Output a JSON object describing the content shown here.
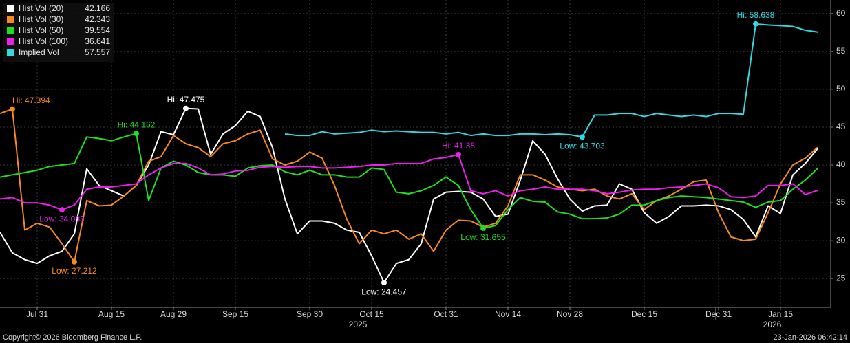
{
  "chart_data": {
    "type": "line",
    "categories": [
      null,
      null,
      null,
      "Jul 31",
      null,
      null,
      null,
      null,
      null,
      "Aug 15",
      null,
      null,
      null,
      null,
      "Aug 29",
      null,
      null,
      null,
      null,
      "Sep 15",
      null,
      null,
      null,
      null,
      null,
      "Sep 30",
      null,
      null,
      null,
      null,
      "Oct 15",
      null,
      null,
      null,
      null,
      null,
      "Oct 31",
      null,
      null,
      null,
      null,
      "Nov 14",
      null,
      null,
      null,
      null,
      "Nov 28",
      null,
      null,
      null,
      null,
      null,
      "Dec 15",
      null,
      null,
      null,
      null,
      null,
      "Dec 31",
      null,
      null,
      null,
      null,
      "Jan 15",
      null,
      null,
      null
    ],
    "years": [
      "2025",
      "2026"
    ],
    "series": [
      {
        "name": "Hist Vol (20)",
        "color": "#ffffff",
        "hi_label": "Hi: 47.475",
        "low_label": "Low: 24.457",
        "values": [
          31.1,
          28.4,
          27.5,
          27.0,
          28.0,
          28.6,
          30.9,
          39.5,
          37.3,
          36.6,
          35.9,
          37.3,
          40.0,
          44.4,
          44.0,
          47.475,
          47.4,
          41.4,
          44.1,
          45.2,
          47.1,
          46.4,
          42.3,
          35.5,
          30.9,
          32.6,
          32.6,
          32.3,
          31.4,
          31.1,
          28.0,
          24.457,
          27.0,
          27.5,
          29.6,
          35.5,
          36.4,
          36.5,
          36.4,
          35.5,
          33.2,
          33.5,
          38.0,
          43.2,
          41.4,
          38.2,
          35.5,
          33.9,
          34.6,
          34.7,
          37.5,
          36.8,
          33.7,
          32.3,
          33.2,
          34.6,
          34.6,
          34.7,
          34.6,
          34.1,
          32.8,
          30.5,
          34.6,
          33.6,
          38.7,
          40.2,
          42.166
        ]
      },
      {
        "name": "Hist Vol (30)",
        "color": "#f7891f",
        "hi_label": "Hi: 47.394",
        "low_label": "Low: 27.212",
        "values": [
          46.8,
          47.394,
          31.4,
          32.3,
          31.8,
          29.6,
          27.212,
          35.3,
          34.6,
          34.7,
          35.9,
          37.3,
          40.5,
          41.1,
          43.9,
          42.8,
          42.3,
          41.1,
          42.8,
          43.2,
          44.1,
          44.6,
          40.8,
          40.0,
          40.5,
          41.7,
          40.9,
          37.3,
          32.8,
          29.6,
          31.4,
          30.9,
          31.4,
          30.2,
          30.9,
          28.6,
          31.4,
          32.7,
          32.6,
          31.8,
          32.3,
          34.6,
          38.7,
          38.7,
          38.0,
          37.1,
          36.8,
          36.6,
          36.8,
          35.9,
          35.5,
          36.2,
          34.1,
          35.3,
          35.9,
          36.8,
          37.8,
          38.0,
          33.7,
          30.5,
          30.0,
          30.2,
          33.7,
          37.5,
          40.0,
          40.9,
          42.343
        ]
      },
      {
        "name": "Hist Vol (50)",
        "color": "#1fe01f",
        "hi_label": "Hi: 44.162",
        "low_label": "Low: 31.655",
        "values": [
          38.4,
          38.7,
          39.0,
          39.3,
          39.8,
          40.0,
          40.2,
          43.7,
          43.5,
          43.2,
          43.7,
          44.162,
          35.3,
          39.6,
          40.5,
          40.0,
          39.0,
          38.7,
          38.7,
          38.5,
          39.6,
          39.9,
          40.0,
          39.1,
          38.7,
          39.3,
          38.7,
          38.7,
          38.4,
          38.4,
          39.6,
          39.4,
          36.4,
          36.2,
          36.6,
          37.3,
          38.4,
          37.3,
          34.1,
          31.655,
          32.0,
          34.1,
          35.7,
          35.2,
          35.1,
          33.8,
          33.5,
          32.9,
          32.9,
          33.0,
          33.5,
          34.7,
          34.7,
          35.3,
          35.7,
          35.9,
          35.8,
          35.7,
          35.5,
          35.3,
          35.1,
          34.4,
          35.1,
          35.3,
          36.8,
          38.0,
          39.554
        ]
      },
      {
        "name": "Hist Vol (100)",
        "color": "#ec1fec",
        "hi_label": "Hi: 41.38",
        "low_label": "Low: 34.083",
        "values": [
          35.5,
          35.7,
          35.0,
          35.0,
          34.7,
          34.083,
          34.7,
          36.8,
          37.1,
          37.1,
          37.3,
          37.5,
          38.7,
          39.6,
          40.2,
          40.2,
          39.6,
          38.7,
          38.8,
          39.2,
          39.3,
          39.7,
          39.8,
          39.7,
          39.8,
          39.8,
          39.6,
          39.6,
          39.7,
          39.8,
          40.0,
          40.0,
          40.2,
          40.2,
          40.2,
          40.8,
          41.0,
          41.38,
          36.6,
          36.2,
          36.6,
          35.9,
          36.6,
          36.8,
          37.1,
          36.8,
          36.8,
          36.8,
          36.6,
          36.2,
          36.4,
          36.7,
          36.8,
          36.8,
          37.0,
          37.1,
          37.3,
          37.5,
          37.0,
          35.8,
          35.7,
          35.9,
          37.3,
          37.3,
          37.5,
          36.1,
          36.641
        ]
      },
      {
        "name": "Implied Vol",
        "color": "#2fd9e3",
        "hi_label": "Hi: 58.638",
        "low_label": "Low: 43.703",
        "values": [
          null,
          null,
          null,
          null,
          null,
          null,
          null,
          null,
          null,
          null,
          null,
          null,
          null,
          null,
          null,
          null,
          null,
          null,
          null,
          null,
          null,
          null,
          null,
          44.1,
          43.9,
          43.9,
          44.4,
          44.1,
          44.2,
          44.3,
          44.6,
          44.4,
          44.5,
          44.4,
          44.3,
          44.3,
          44.1,
          44.3,
          43.9,
          44.1,
          43.9,
          43.9,
          44.1,
          44.1,
          44.0,
          44.1,
          44.0,
          43.703,
          46.6,
          46.6,
          46.8,
          46.8,
          46.4,
          46.8,
          46.6,
          46.4,
          46.6,
          46.4,
          46.8,
          46.8,
          46.7,
          58.638,
          58.5,
          58.4,
          58.3,
          57.8,
          57.557
        ]
      }
    ],
    "ylim": [
      21.2,
      61.8
    ],
    "yticks": [
      25,
      30,
      35,
      40,
      45,
      50,
      55,
      60
    ],
    "grid": true,
    "legend": "top-left",
    "footer_left": "Copyright© 2026 Bloomberg Finance L.P.",
    "footer_right": "23-Jan-2026 06:42:14"
  }
}
